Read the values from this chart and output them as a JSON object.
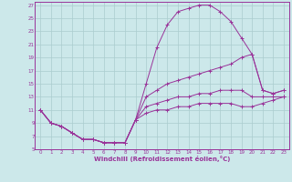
{
  "xlabel": "Windchill (Refroidissement éolien,°C)",
  "background_color": "#cce8ea",
  "grid_color": "#aaccce",
  "line_color": "#993399",
  "xlim": [
    -0.5,
    23.5
  ],
  "ylim": [
    5,
    27.5
  ],
  "xticks": [
    0,
    1,
    2,
    3,
    4,
    5,
    6,
    7,
    8,
    9,
    10,
    11,
    12,
    13,
    14,
    15,
    16,
    17,
    18,
    19,
    20,
    21,
    22,
    23
  ],
  "yticks": [
    5,
    7,
    9,
    11,
    13,
    15,
    17,
    19,
    21,
    23,
    25,
    27
  ],
  "line1_x": [
    0,
    1,
    2,
    3,
    4,
    5,
    6,
    7,
    8,
    9,
    10,
    11,
    12,
    13,
    14,
    15,
    16,
    17,
    18,
    19,
    20,
    21,
    22,
    23
  ],
  "line1_y": [
    11,
    9,
    8.5,
    7.5,
    6.5,
    6.5,
    6,
    6,
    6,
    9.5,
    15,
    20.5,
    24,
    26,
    26.5,
    27,
    27,
    26,
    24.5,
    22,
    19.5,
    14,
    13.5,
    14
  ],
  "line2_x": [
    0,
    1,
    2,
    3,
    4,
    5,
    6,
    7,
    8,
    9,
    10,
    11,
    12,
    13,
    14,
    15,
    16,
    17,
    18,
    19,
    20,
    21,
    22,
    23
  ],
  "line2_y": [
    11,
    9,
    8.5,
    7.5,
    6.5,
    6.5,
    6,
    6,
    6,
    9.5,
    13,
    14,
    15,
    15.5,
    16,
    16.5,
    17,
    17.5,
    18,
    19,
    19.5,
    14,
    13.5,
    14
  ],
  "line3_x": [
    0,
    1,
    2,
    3,
    4,
    5,
    6,
    7,
    8,
    9,
    10,
    11,
    12,
    13,
    14,
    15,
    16,
    17,
    18,
    19,
    20,
    21,
    22,
    23
  ],
  "line3_y": [
    11,
    9,
    8.5,
    7.5,
    6.5,
    6.5,
    6,
    6,
    6,
    9.5,
    11.5,
    12,
    12.5,
    13,
    13,
    13.5,
    13.5,
    14,
    14,
    14,
    13,
    13,
    13,
    13
  ],
  "line4_x": [
    0,
    1,
    2,
    3,
    4,
    5,
    6,
    7,
    8,
    9,
    10,
    11,
    12,
    13,
    14,
    15,
    16,
    17,
    18,
    19,
    20,
    21,
    22,
    23
  ],
  "line4_y": [
    11,
    9,
    8.5,
    7.5,
    6.5,
    6.5,
    6,
    6,
    6,
    9.5,
    10.5,
    11,
    11,
    11.5,
    11.5,
    12,
    12,
    12,
    12,
    11.5,
    11.5,
    12,
    12.5,
    13
  ]
}
